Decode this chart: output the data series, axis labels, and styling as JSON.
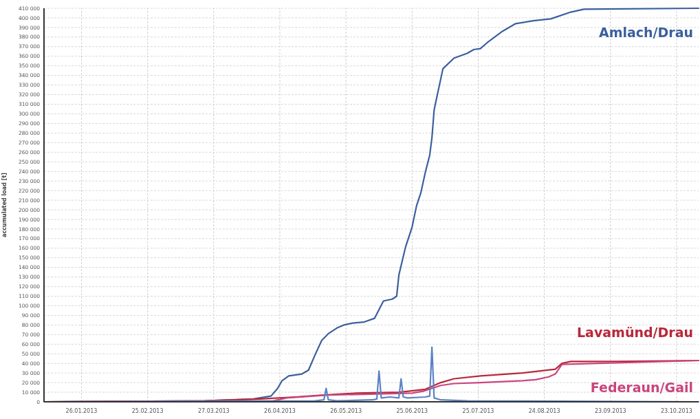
{
  "chart_data": {
    "type": "line",
    "ylabel": "accumulated load [t]",
    "xlim": [
      "2013-01-09",
      "2013-11-02"
    ],
    "xticks": [
      {
        "value": "2013-01-26",
        "label": "26.01.2013"
      },
      {
        "value": "2013-02-25",
        "label": "25.02.2013"
      },
      {
        "value": "2013-03-27",
        "label": "27.03.2013"
      },
      {
        "value": "2013-04-26",
        "label": "26.04.2013"
      },
      {
        "value": "2013-05-26",
        "label": "26.05.2013"
      },
      {
        "value": "2013-06-25",
        "label": "25.06.2013"
      },
      {
        "value": "2013-07-25",
        "label": "25.07.2013"
      },
      {
        "value": "2013-08-24",
        "label": "24.08.2013"
      },
      {
        "value": "2013-09-23",
        "label": "23.09.2013"
      },
      {
        "value": "2013-10-23",
        "label": "23.10.2013"
      }
    ],
    "ylim": [
      0,
      410000
    ],
    "yticks": [
      {
        "value": 0,
        "label": "0"
      },
      {
        "value": 10000,
        "label": "10 000"
      },
      {
        "value": 20000,
        "label": "20 000"
      },
      {
        "value": 30000,
        "label": "30 000"
      },
      {
        "value": 40000,
        "label": "40 000"
      },
      {
        "value": 50000,
        "label": "50 000"
      },
      {
        "value": 60000,
        "label": "60 000"
      },
      {
        "value": 70000,
        "label": "70 000"
      },
      {
        "value": 80000,
        "label": "80 000"
      },
      {
        "value": 90000,
        "label": "90 000"
      },
      {
        "value": 100000,
        "label": "100 000"
      },
      {
        "value": 110000,
        "label": "110 000"
      },
      {
        "value": 120000,
        "label": "120 000"
      },
      {
        "value": 130000,
        "label": "130 000"
      },
      {
        "value": 140000,
        "label": "140 000"
      },
      {
        "value": 150000,
        "label": "150 000"
      },
      {
        "value": 160000,
        "label": "160 000"
      },
      {
        "value": 170000,
        "label": "170 000"
      },
      {
        "value": 180000,
        "label": "180 000"
      },
      {
        "value": 190000,
        "label": "190 000"
      },
      {
        "value": 200000,
        "label": "200 000"
      },
      {
        "value": 210000,
        "label": "210 000"
      },
      {
        "value": 220000,
        "label": "220 000"
      },
      {
        "value": 230000,
        "label": "230 000"
      },
      {
        "value": 240000,
        "label": "240 000"
      },
      {
        "value": 250000,
        "label": "250 000"
      },
      {
        "value": 260000,
        "label": "260 000"
      },
      {
        "value": 270000,
        "label": "270 000"
      },
      {
        "value": 280000,
        "label": "280 000"
      },
      {
        "value": 290000,
        "label": "290 000"
      },
      {
        "value": 300000,
        "label": "300 000"
      },
      {
        "value": 310000,
        "label": "310 000"
      },
      {
        "value": 320000,
        "label": "320 000"
      },
      {
        "value": 330000,
        "label": "330 000"
      },
      {
        "value": 340000,
        "label": "340 000"
      },
      {
        "value": 350000,
        "label": "350 000"
      },
      {
        "value": 360000,
        "label": "360 000"
      },
      {
        "value": 370000,
        "label": "370 000"
      },
      {
        "value": 380000,
        "label": "380 000"
      },
      {
        "value": 390000,
        "label": "390 000"
      },
      {
        "value": 400000,
        "label": "400 000"
      },
      {
        "value": 410000,
        "label": "410 000"
      }
    ],
    "grid": true,
    "line_style": "solid",
    "series": [
      {
        "name": "Amlach/Drau",
        "color": "#3a5f9e",
        "x": [
          "2013-01-09",
          "2013-03-23",
          "2013-04-14",
          "2013-04-22",
          "2013-04-25",
          "2013-04-27",
          "2013-04-30",
          "2013-05-06",
          "2013-05-09",
          "2013-05-12",
          "2013-05-15",
          "2013-05-18",
          "2013-05-22",
          "2013-05-25",
          "2013-05-29",
          "2013-06-03",
          "2013-06-08",
          "2013-06-10",
          "2013-06-12",
          "2013-06-16",
          "2013-06-18",
          "2013-06-19",
          "2013-06-22",
          "2013-06-25",
          "2013-06-27",
          "2013-06-29",
          "2013-07-01",
          "2013-07-03",
          "2013-07-04",
          "2013-07-05",
          "2013-07-06",
          "2013-07-09",
          "2013-07-14",
          "2013-07-20",
          "2013-07-23",
          "2013-07-26",
          "2013-07-29",
          "2013-08-05",
          "2013-08-11",
          "2013-08-19",
          "2013-08-27",
          "2013-09-05",
          "2013-09-11",
          "2013-11-02"
        ],
        "values": [
          0,
          1000,
          3000,
          6000,
          14000,
          22000,
          27000,
          29000,
          33000,
          49000,
          64000,
          71000,
          77000,
          80000,
          82000,
          83000,
          87000,
          96000,
          105000,
          107000,
          110000,
          132000,
          161000,
          182000,
          204000,
          218000,
          239000,
          257000,
          275000,
          304000,
          315000,
          347000,
          358000,
          363000,
          367000,
          368000,
          374000,
          386000,
          394000,
          397000,
          399000,
          406000,
          409000,
          410000
        ]
      },
      {
        "name": "Lavamünd/Drau",
        "color": "#b8283a",
        "x": [
          "2013-01-09",
          "2013-03-23",
          "2013-04-17",
          "2013-05-03",
          "2013-05-15",
          "2013-05-31",
          "2013-06-19",
          "2013-07-01",
          "2013-07-08",
          "2013-07-14",
          "2013-07-26",
          "2013-08-14",
          "2013-08-29",
          "2013-09-01",
          "2013-09-05",
          "2013-09-26",
          "2013-11-02"
        ],
        "values": [
          0,
          1000,
          3000,
          5000,
          7000,
          9000,
          10000,
          13000,
          20000,
          24000,
          27000,
          30000,
          34000,
          40000,
          42000,
          42000,
          43000
        ]
      },
      {
        "name": "Federaun/Gail",
        "color": "#c9457e",
        "x": [
          "2013-01-09",
          "2013-04-23",
          "2013-04-29",
          "2013-05-18",
          "2013-06-25",
          "2013-06-30",
          "2013-07-08",
          "2013-07-14",
          "2013-07-26",
          "2013-08-14",
          "2013-08-20",
          "2013-08-26",
          "2013-08-29",
          "2013-09-01",
          "2013-11-02"
        ],
        "values": [
          0,
          1000,
          4000,
          7000,
          9000,
          11000,
          17000,
          19000,
          20000,
          22000,
          23000,
          26000,
          29000,
          39000,
          43000
        ]
      },
      {
        "color": "#5b82c4",
        "x": [
          "2013-01-09",
          "2013-05-12",
          "2013-05-16",
          "2013-05-17",
          "2013-05-18",
          "2013-05-22",
          "2013-06-07",
          "2013-06-09",
          "2013-06-10",
          "2013-06-11",
          "2013-06-15",
          "2013-06-19",
          "2013-06-20",
          "2013-06-21",
          "2013-06-23",
          "2013-07-01",
          "2013-07-03",
          "2013-07-04",
          "2013-07-05",
          "2013-07-08",
          "2013-07-20",
          "2013-11-02"
        ],
        "values": [
          0,
          1000,
          2000,
          14000,
          2000,
          1000,
          2000,
          3000,
          32000,
          4000,
          5000,
          4000,
          24000,
          5000,
          4000,
          5000,
          6000,
          57000,
          4000,
          2000,
          1000,
          0
        ]
      }
    ]
  }
}
